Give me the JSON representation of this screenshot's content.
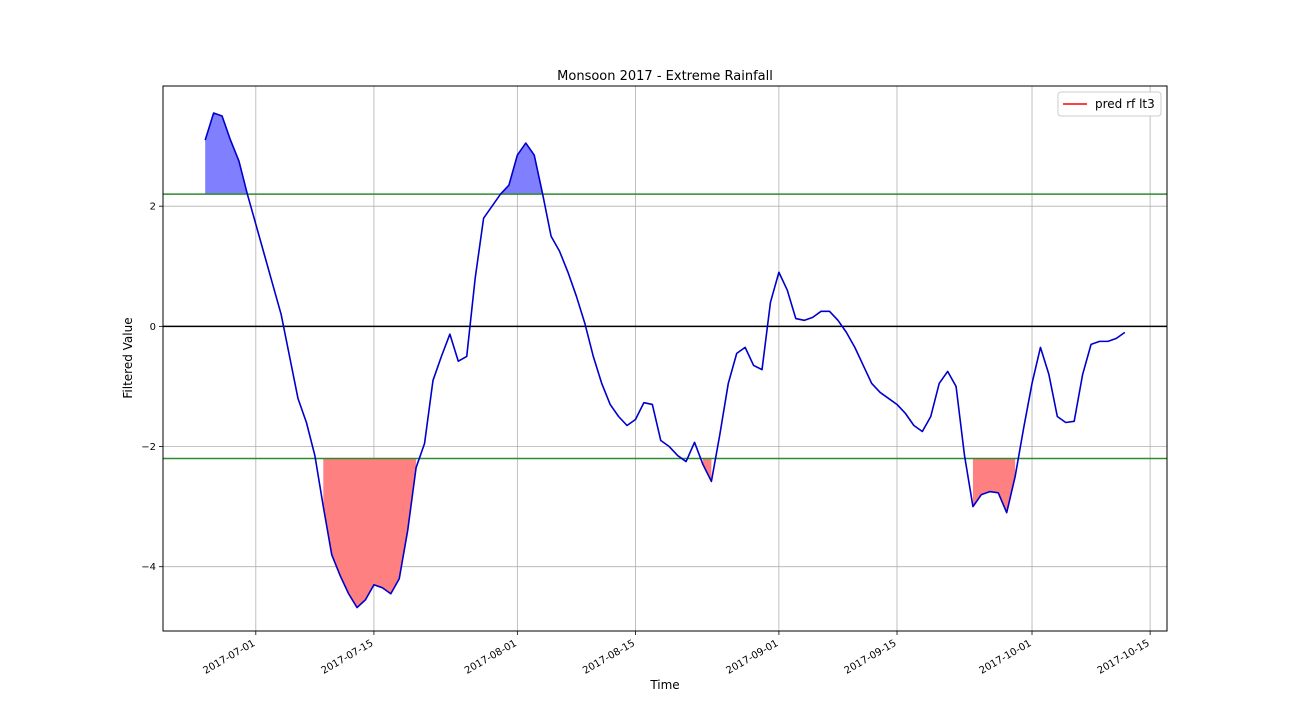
{
  "chart_data": {
    "type": "line",
    "title": "Monsoon 2017 - Extreme Rainfall",
    "xlabel": "Time",
    "ylabel": "Filtered Value",
    "xlim": [
      "2017-06-20",
      "2017-10-17"
    ],
    "ylim": [
      -5.07,
      4.0
    ],
    "grid": true,
    "legend": {
      "placement": "top-right",
      "entries": [
        {
          "label": "pred rf lt3",
          "color": "#ff0000"
        }
      ]
    },
    "x_ticks": [
      "2017-07-01",
      "2017-07-15",
      "2017-08-01",
      "2017-08-15",
      "2017-09-01",
      "2017-09-15",
      "2017-10-01",
      "2017-10-15"
    ],
    "y_ticks": [
      {
        "value": 2,
        "label": "2"
      },
      {
        "value": 0,
        "label": "0"
      },
      {
        "value": -2,
        "label": "−2"
      },
      {
        "value": -4,
        "label": "−4"
      }
    ],
    "thresholds": {
      "upper": 2.2,
      "lower": -2.2,
      "zero": 0,
      "color": "#2e8b2e"
    },
    "colors": {
      "line": "#0000cc",
      "above_fill": "#8080ff",
      "below_fill": "#ff8080",
      "zero_line": "#000000"
    },
    "series": [
      {
        "name": "pred rf lt3",
        "x": [
          "2017-06-25",
          "2017-06-26",
          "2017-06-27",
          "2017-06-28",
          "2017-06-29",
          "2017-06-30",
          "2017-07-01",
          "2017-07-02",
          "2017-07-03",
          "2017-07-04",
          "2017-07-05",
          "2017-07-06",
          "2017-07-07",
          "2017-07-08",
          "2017-07-09",
          "2017-07-10",
          "2017-07-11",
          "2017-07-12",
          "2017-07-13",
          "2017-07-14",
          "2017-07-15",
          "2017-07-16",
          "2017-07-17",
          "2017-07-18",
          "2017-07-19",
          "2017-07-20",
          "2017-07-21",
          "2017-07-22",
          "2017-07-23",
          "2017-07-24",
          "2017-07-25",
          "2017-07-26",
          "2017-07-27",
          "2017-07-28",
          "2017-07-29",
          "2017-07-30",
          "2017-07-31",
          "2017-08-01",
          "2017-08-02",
          "2017-08-03",
          "2017-08-04",
          "2017-08-05",
          "2017-08-06",
          "2017-08-07",
          "2017-08-08",
          "2017-08-09",
          "2017-08-10",
          "2017-08-11",
          "2017-08-12",
          "2017-08-13",
          "2017-08-14",
          "2017-08-15",
          "2017-08-16",
          "2017-08-17",
          "2017-08-18",
          "2017-08-19",
          "2017-08-20",
          "2017-08-21",
          "2017-08-22",
          "2017-08-23",
          "2017-08-24",
          "2017-08-25",
          "2017-08-26",
          "2017-08-27",
          "2017-08-28",
          "2017-08-29",
          "2017-08-30",
          "2017-08-31",
          "2017-09-01",
          "2017-09-02",
          "2017-09-03",
          "2017-09-04",
          "2017-09-05",
          "2017-09-06",
          "2017-09-07",
          "2017-09-08",
          "2017-09-09",
          "2017-09-10",
          "2017-09-11",
          "2017-09-12",
          "2017-09-13",
          "2017-09-14",
          "2017-09-15",
          "2017-09-16",
          "2017-09-17",
          "2017-09-18",
          "2017-09-19",
          "2017-09-20",
          "2017-09-21",
          "2017-09-22",
          "2017-09-23",
          "2017-09-24",
          "2017-09-25",
          "2017-09-26",
          "2017-09-27",
          "2017-09-28",
          "2017-09-29",
          "2017-09-30",
          "2017-10-01",
          "2017-10-02",
          "2017-10-03",
          "2017-10-04",
          "2017-10-05",
          "2017-10-06",
          "2017-10-07",
          "2017-10-08",
          "2017-10-09",
          "2017-10-10",
          "2017-10-11",
          "2017-10-12"
        ],
        "y": [
          3.1,
          3.55,
          3.5,
          3.1,
          2.75,
          2.2,
          1.7,
          1.2,
          0.7,
          0.2,
          -0.5,
          -1.2,
          -1.6,
          -2.15,
          -3.0,
          -3.8,
          -4.15,
          -4.45,
          -4.68,
          -4.55,
          -4.3,
          -4.35,
          -4.45,
          -4.2,
          -3.4,
          -2.35,
          -1.95,
          -0.9,
          -0.5,
          -0.13,
          -0.58,
          -0.5,
          0.8,
          1.8,
          2.0,
          2.2,
          2.35,
          2.85,
          3.05,
          2.85,
          2.2,
          1.5,
          1.25,
          0.9,
          0.5,
          0.05,
          -0.5,
          -0.95,
          -1.3,
          -1.5,
          -1.65,
          -1.55,
          -1.27,
          -1.3,
          -1.9,
          -2.0,
          -2.15,
          -2.25,
          -1.93,
          -2.3,
          -2.58,
          -1.8,
          -0.95,
          -0.45,
          -0.35,
          -0.65,
          -0.72,
          0.4,
          0.9,
          0.6,
          0.13,
          0.1,
          0.15,
          0.25,
          0.25,
          0.1,
          -0.1,
          -0.35,
          -0.65,
          -0.95,
          -1.1,
          -1.2,
          -1.3,
          -1.45,
          -1.65,
          -1.75,
          -1.5,
          -0.95,
          -0.75,
          -1.0,
          -2.15,
          -3.0,
          -2.8,
          -2.75,
          -2.77,
          -3.1,
          -2.5,
          -1.7,
          -0.95,
          -0.35,
          -0.8,
          -1.5,
          -1.6,
          -1.58,
          -0.8,
          -0.3,
          -0.25,
          -0.25,
          -0.2,
          -0.1
        ]
      }
    ]
  }
}
